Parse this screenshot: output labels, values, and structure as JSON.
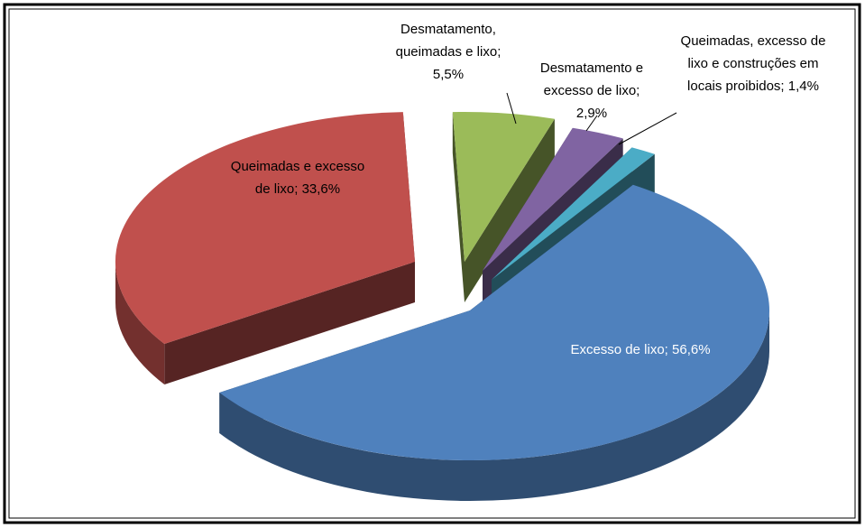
{
  "chart_data": {
    "type": "pie3d",
    "values": [
      56.6,
      33.6,
      5.5,
      2.9,
      1.4
    ],
    "value_labels": [
      "Excesso de lixo; 56,6%",
      "Queimadas e excesso de lixo; 33,6%",
      "Desmatamento, queimadas e lixo; 5,5%",
      "Desmatamento e excesso de lixo; 2,9%",
      "Queimadas, excesso de lixo e construções em locais proibidos; 1,4%"
    ],
    "colors": [
      "#4f81bd",
      "#c0504d",
      "#9bbb59",
      "#8064a2",
      "#4bacc6"
    ]
  }
}
